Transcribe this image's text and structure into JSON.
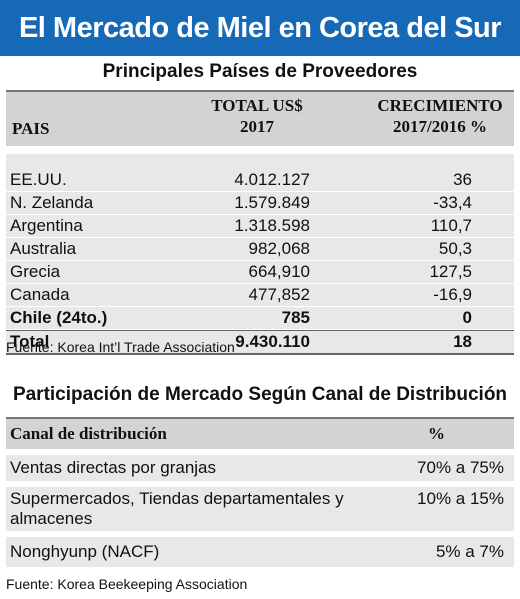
{
  "banner_title": "El Mercado de Miel en Corea del Sur",
  "suppliers": {
    "title": "Principales Países de Proveedores",
    "headers": {
      "country": "PAIS",
      "total_line1": "TOTAL  US$",
      "total_line2": "2017",
      "growth_line1": "CRECIMIENTO",
      "growth_line2": "2017/2016 %"
    },
    "rows": [
      {
        "country": "EE.UU.",
        "total": "4.012.127",
        "growth": "36"
      },
      {
        "country": "N. Zelanda",
        "total": "1.579.849",
        "growth": "-33,4"
      },
      {
        "country": "Argentina",
        "total": "1.318.598",
        "growth": "110,7"
      },
      {
        "country": "Australia",
        "total": "982,068",
        "growth": "50,3"
      },
      {
        "country": "Grecia",
        "total": "664,910",
        "growth": "127,5"
      },
      {
        "country": "Canada",
        "total": "477,852",
        "growth": "-16,9"
      },
      {
        "country": "Chile (24to.)",
        "total": "785",
        "growth": "0"
      },
      {
        "country": "Total",
        "total": "9.430.110",
        "growth": "18"
      }
    ],
    "source": "Fuente: Korea Int’l Trade Association"
  },
  "distribution": {
    "title": "Participación de Mercado Según Canal de Distribución",
    "headers": {
      "channel": "Canal de distribución",
      "percent": "%"
    },
    "rows": [
      {
        "channel": "Ventas directas por granjas",
        "percent": "70% a 75%"
      },
      {
        "channel": "Supermercados, Tiendas departamentales y almacenes",
        "percent": "10% a 15%"
      },
      {
        "channel": "Nonghyunp (NACF)",
        "percent": "5% a 7%"
      }
    ],
    "source": "Fuente: Korea Beekeeping Association"
  }
}
